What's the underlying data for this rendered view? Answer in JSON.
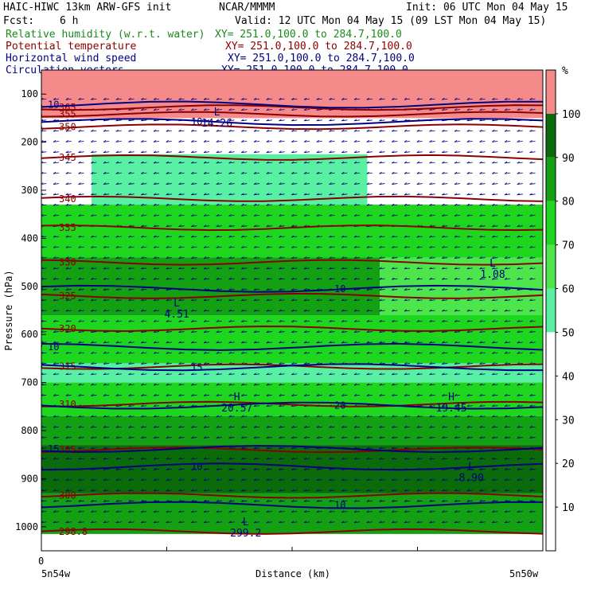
{
  "header": {
    "model": "HAIC-HIWC 13km ARW-GFS init",
    "org": "NCAR/MMMM",
    "init": "Init: 06 UTC Mon 04 May 15",
    "fcst_label": "Fcst:",
    "fcst_value": "6 h",
    "valid": "Valid: 12 UTC Mon 04 May 15 (09 LST Mon 04 May 15)"
  },
  "fields": [
    {
      "name": "Relative humidity (w.r.t. water)",
      "xy": "XY= 251.0,100.0 to 284.7,100.0",
      "color": "#1a8a1a"
    },
    {
      "name": "Potential temperature",
      "xy": "XY= 251.0,100.0 to 284.7,100.0",
      "color": "#8b0000"
    },
    {
      "name": "Horizontal wind speed",
      "xy": "XY= 251.0,100.0 to 284.7,100.0",
      "color": "#000080"
    },
    {
      "name": "Circulation vectors",
      "xy": "XY= 251.0,100.0 to 284.7,100.0",
      "color": "#000080"
    }
  ],
  "chart_data": {
    "type": "heatmap",
    "ylabel": "Pressure (hPa)",
    "xlabel": "Distance (km)",
    "x_start_label": "0",
    "x_end_labels": [
      "5n54w",
      "5n50w"
    ],
    "y_ticks": [
      100,
      200,
      300,
      400,
      500,
      600,
      700,
      800,
      900,
      1000
    ],
    "ylim": [
      1050,
      50
    ],
    "x_range": [
      0,
      400
    ],
    "x_ticks": [
      0,
      100,
      200,
      300,
      400
    ],
    "colorbar": {
      "unit": "%",
      "ticks": [
        10,
        20,
        30,
        40,
        50,
        60,
        70,
        80,
        90,
        100
      ],
      "levels": [
        {
          "from": 100,
          "to": 110,
          "color": "#f58a8a"
        },
        {
          "from": 90,
          "to": 100,
          "color": "#0b6b0b"
        },
        {
          "from": 80,
          "to": 90,
          "color": "#13a013"
        },
        {
          "from": 70,
          "to": 80,
          "color": "#1ed61e"
        },
        {
          "from": 60,
          "to": 70,
          "color": "#4ce64c"
        },
        {
          "from": 50,
          "to": 60,
          "color": "#58f0a2"
        },
        {
          "from": 0,
          "to": 50,
          "color": "#ffffff"
        }
      ]
    },
    "rh_bands": [
      {
        "p_top": 50,
        "p_bot": 150,
        "x0": 0,
        "x1": 400,
        "rh": 100
      },
      {
        "p_top": 225,
        "p_bot": 330,
        "x0": 40,
        "x1": 260,
        "rh": 55
      },
      {
        "p_top": 330,
        "p_bot": 440,
        "x0": 0,
        "x1": 400,
        "rh": 75
      },
      {
        "p_top": 440,
        "p_bot": 560,
        "x0": 0,
        "x1": 270,
        "rh": 85
      },
      {
        "p_top": 440,
        "p_bot": 560,
        "x0": 270,
        "x1": 400,
        "rh": 65
      },
      {
        "p_top": 560,
        "p_bot": 660,
        "x0": 0,
        "x1": 400,
        "rh": 75
      },
      {
        "p_top": 660,
        "p_bot": 700,
        "x0": 0,
        "x1": 400,
        "rh": 55
      },
      {
        "p_top": 700,
        "p_bot": 770,
        "x0": 0,
        "x1": 400,
        "rh": 75
      },
      {
        "p_top": 770,
        "p_bot": 830,
        "x0": 0,
        "x1": 400,
        "rh": 85
      },
      {
        "p_top": 830,
        "p_bot": 930,
        "x0": 0,
        "x1": 400,
        "rh": 92
      },
      {
        "p_top": 930,
        "p_bot": 1015,
        "x0": 0,
        "x1": 400,
        "rh": 85
      }
    ],
    "theta_contours": [
      {
        "value": "365",
        "p": 128
      },
      {
        "value": "355",
        "p": 142
      },
      {
        "value": "350",
        "p": 168
      },
      {
        "value": "345",
        "p": 232
      },
      {
        "value": "340",
        "p": 318
      },
      {
        "value": "335",
        "p": 378
      },
      {
        "value": "330",
        "p": 450
      },
      {
        "value": "325",
        "p": 520
      },
      {
        "value": "320",
        "p": 588
      },
      {
        "value": "315",
        "p": 667
      },
      {
        "value": "310",
        "p": 745
      },
      {
        "value": "305",
        "p": 840
      },
      {
        "value": "300",
        "p": 935
      },
      {
        "value": "298.8",
        "p": 1010
      }
    ],
    "wind_contours": [
      {
        "value": "10",
        "p": 122
      },
      {
        "value": "10",
        "p": 158
      },
      {
        "value": "10",
        "p": 505
      },
      {
        "value": "10",
        "p": 626
      },
      {
        "value": "15",
        "p": 668
      },
      {
        "value": "20",
        "p": 748
      },
      {
        "value": "15",
        "p": 838
      },
      {
        "value": "10",
        "p": 875
      },
      {
        "value": "10",
        "p": 955
      }
    ],
    "extrema": [
      {
        "type": "L",
        "value": "4.51",
        "x": 108,
        "p": 555
      },
      {
        "type": "L",
        "value": "1.08",
        "x": 360,
        "p": 472
      },
      {
        "type": "H",
        "value": "20.57",
        "x": 156,
        "p": 750
      },
      {
        "type": "H",
        "value": "19.45",
        "x": 327,
        "p": 750
      },
      {
        "type": "L",
        "value": "8.90",
        "x": 343,
        "p": 895
      },
      {
        "type": "L",
        "value": "299.2",
        "x": 163,
        "p": 1010
      },
      {
        "type": "L",
        "value": "14.26",
        "x": 140,
        "p": 158
      }
    ]
  }
}
